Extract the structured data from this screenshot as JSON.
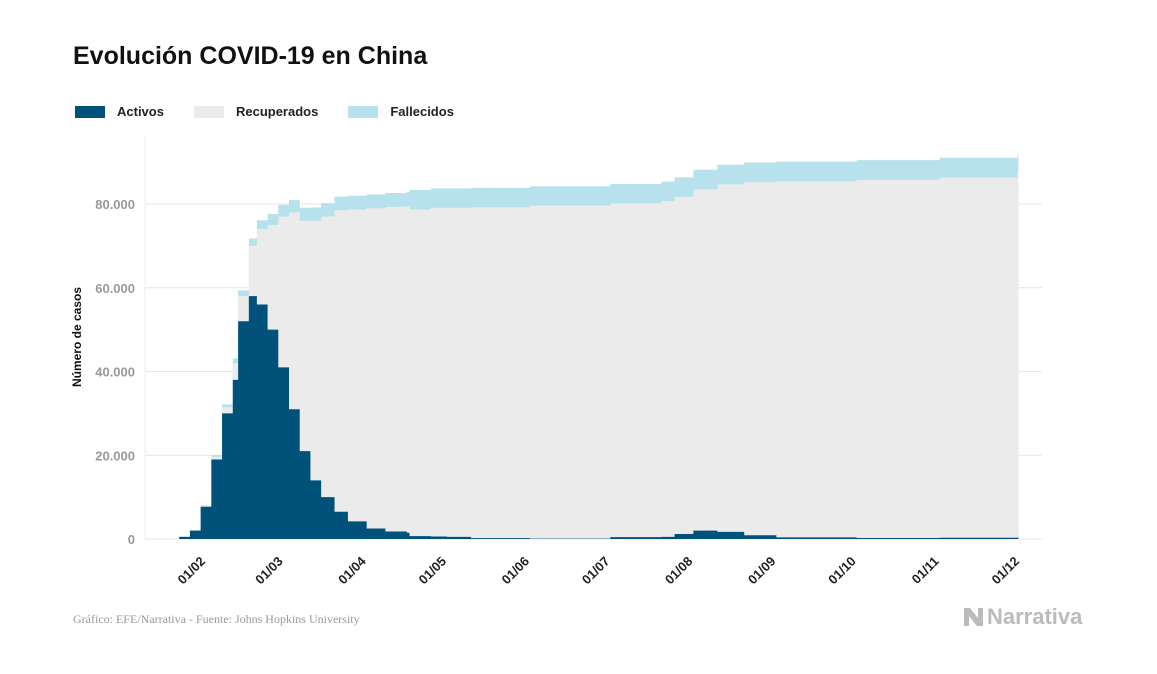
{
  "title": "Evolución COVID-19 en China",
  "footer": "Gráfico: EFE/Narrativa - Fuente: Johns Hopkins University",
  "logo": "Narrativa",
  "colors": {
    "activos": "#00527a",
    "recuperados": "#ebebeb",
    "fallecidos": "#b8e1ee"
  },
  "chart_data": {
    "type": "area",
    "stacked": true,
    "step": true,
    "title": "Evolución COVID-19 en China",
    "ylabel": "Número de casos",
    "xlabel": "",
    "ylim": [
      0,
      96000
    ],
    "grid": true,
    "legend_position": "top-left",
    "yticks": [
      0,
      20000,
      40000,
      60000,
      80000
    ],
    "ytick_labels": [
      "0",
      "20.000",
      "40.000",
      "60.000",
      "80.000"
    ],
    "xticks": [
      "2020-02-01",
      "2020-03-01",
      "2020-04-01",
      "2020-05-01",
      "2020-06-01",
      "2020-07-01",
      "2020-08-01",
      "2020-09-01",
      "2020-10-01",
      "2020-11-01",
      "2020-12-01"
    ],
    "xtick_labels": [
      "01/02",
      "01/03",
      "01/04",
      "01/05",
      "01/06",
      "01/07",
      "01/08",
      "01/09",
      "01/10",
      "01/11",
      "01/12"
    ],
    "x": [
      "2020-01-22",
      "2020-01-26",
      "2020-01-30",
      "2020-02-03",
      "2020-02-07",
      "2020-02-11",
      "2020-02-13",
      "2020-02-17",
      "2020-02-20",
      "2020-02-24",
      "2020-02-28",
      "2020-03-03",
      "2020-03-07",
      "2020-03-11",
      "2020-03-15",
      "2020-03-20",
      "2020-03-25",
      "2020-04-01",
      "2020-04-08",
      "2020-04-16",
      "2020-04-17",
      "2020-04-25",
      "2020-05-01",
      "2020-05-10",
      "2020-06-01",
      "2020-07-01",
      "2020-07-20",
      "2020-07-25",
      "2020-08-01",
      "2020-08-10",
      "2020-08-20",
      "2020-09-01",
      "2020-10-01",
      "2020-11-01",
      "2020-11-30"
    ],
    "series": [
      {
        "name": "Activos",
        "values": [
          500,
          2000,
          7700,
          19000,
          30000,
          38000,
          52000,
          58000,
          56000,
          50000,
          41000,
          31000,
          21000,
          14000,
          10000,
          6500,
          4200,
          2500,
          1800,
          1500,
          700,
          600,
          500,
          200,
          100,
          450,
          500,
          1200,
          2000,
          1700,
          900,
          400,
          250,
          300,
          400
        ]
      },
      {
        "name": "Recuperados",
        "values": [
          30,
          50,
          120,
          600,
          1500,
          4000,
          6000,
          12000,
          18000,
          25000,
          36000,
          47000,
          55000,
          62000,
          67000,
          72000,
          74500,
          76500,
          77500,
          78000,
          78000,
          78500,
          78600,
          79000,
          79500,
          79700,
          80200,
          80500,
          81500,
          83000,
          84300,
          85000,
          85500,
          86000,
          86800
        ]
      },
      {
        "name": "Fallecidos",
        "values": [
          17,
          56,
          170,
          430,
          640,
          1100,
          1380,
          1770,
          2120,
          2600,
          2800,
          2950,
          3100,
          3170,
          3200,
          3250,
          3280,
          3310,
          3330,
          3340,
          4640,
          4640,
          4640,
          4640,
          4640,
          4640,
          4640,
          4650,
          4680,
          4700,
          4710,
          4730,
          4740,
          4740,
          4750
        ]
      }
    ]
  }
}
